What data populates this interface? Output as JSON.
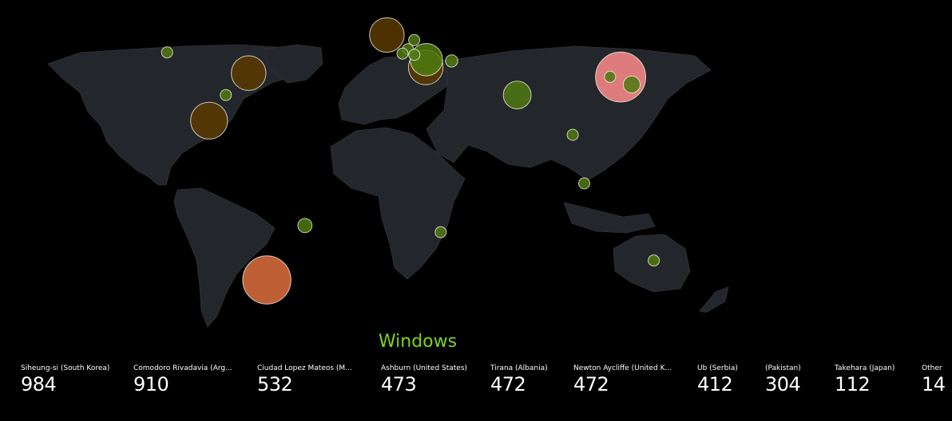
{
  "map": {
    "legend_title": "Windows",
    "colors": {
      "background": "#000000",
      "land": "#23262b",
      "title": "#7ed321"
    },
    "markers": [
      {
        "name": "Siheung-si (South Korea)",
        "lat": 37.4,
        "lon": 126.8,
        "value": 984,
        "color": "#ff8c8c"
      },
      {
        "name": "Comodoro Rivadavia (Argentina)",
        "lat": -45.8,
        "lon": -67.5,
        "value": 910,
        "color": "#e07040"
      },
      {
        "name": "Ciudad Lopez Mateos (Mexico)",
        "lat": 19.5,
        "lon": -99.2,
        "value": 532,
        "color": "#5a3a00"
      },
      {
        "name": "Ashburn (United States)",
        "lat": 39.0,
        "lon": -77.5,
        "value": 473,
        "color": "#5a3a00"
      },
      {
        "name": "Tirana (Albania)",
        "lat": 41.3,
        "lon": 19.8,
        "value": 472,
        "color": "#5a3a00"
      },
      {
        "name": "Newton Aycliffe (United Kingdom)",
        "lat": 54.6,
        "lon": -1.6,
        "value": 472,
        "color": "#5a3a00"
      },
      {
        "name": "Ub (Serbia)",
        "lat": 44.5,
        "lon": 20.1,
        "value": 412,
        "color": "#4f7a10"
      },
      {
        "name": "(Pakistan)",
        "lat": 30.0,
        "lon": 70.0,
        "value": 304,
        "color": "#4f7a10"
      },
      {
        "name": "Takehara (Japan)",
        "lat": 34.3,
        "lon": 132.9,
        "value": 112,
        "color": "#4f7a10"
      },
      {
        "name": "",
        "lat": 44.0,
        "lon": 34.0,
        "value": 60,
        "color": "#4f7a10"
      },
      {
        "name": "",
        "lat": 47.5,
        "lon": -122.3,
        "value": 30,
        "color": "#4f7a10"
      },
      {
        "name": "",
        "lat": 30.0,
        "lon": -90.0,
        "value": 40,
        "color": "#4f7a10"
      },
      {
        "name": "",
        "lat": 52.5,
        "lon": 13.4,
        "value": 40,
        "color": "#4f7a10"
      },
      {
        "name": "",
        "lat": 48.8,
        "lon": 10.0,
        "value": 40,
        "color": "#4f7a10"
      },
      {
        "name": "",
        "lat": 46.5,
        "lon": 13.5,
        "value": 40,
        "color": "#4f7a10"
      },
      {
        "name": "",
        "lat": 47.0,
        "lon": 7.0,
        "value": 40,
        "color": "#4f7a10"
      },
      {
        "name": "",
        "lat": 13.7,
        "lon": 100.5,
        "value": 30,
        "color": "#4f7a10"
      },
      {
        "name": "",
        "lat": -6.2,
        "lon": 106.8,
        "value": 30,
        "color": "#4f7a10"
      },
      {
        "name": "",
        "lat": -23.5,
        "lon": -46.6,
        "value": 80,
        "color": "#4f7a10"
      },
      {
        "name": "",
        "lat": -26.2,
        "lon": 28.0,
        "value": 30,
        "color": "#4f7a10"
      },
      {
        "name": "",
        "lat": -37.8,
        "lon": 145.0,
        "value": 30,
        "color": "#4f7a10"
      },
      {
        "name": "",
        "lat": 37.5,
        "lon": 121.0,
        "value": 30,
        "color": "#4f7a10"
      }
    ]
  },
  "stats": [
    {
      "label": "Siheung-si (South Korea)",
      "value": "984"
    },
    {
      "label": "Comodoro Rivadavia (Arg...",
      "value": "910"
    },
    {
      "label": "Ciudad Lopez Mateos (M...",
      "value": "532"
    },
    {
      "label": "Ashburn (United States)",
      "value": "473"
    },
    {
      "label": "Tirana (Albania)",
      "value": "472"
    },
    {
      "label": "Newton Aycliffe (United K...",
      "value": "472"
    },
    {
      "label": "Ub (Serbia)",
      "value": "412"
    },
    {
      "label": "(Pakistan)",
      "value": "304"
    },
    {
      "label": "Takehara (Japan)",
      "value": "112"
    },
    {
      "label": "Other",
      "value": "14"
    }
  ]
}
